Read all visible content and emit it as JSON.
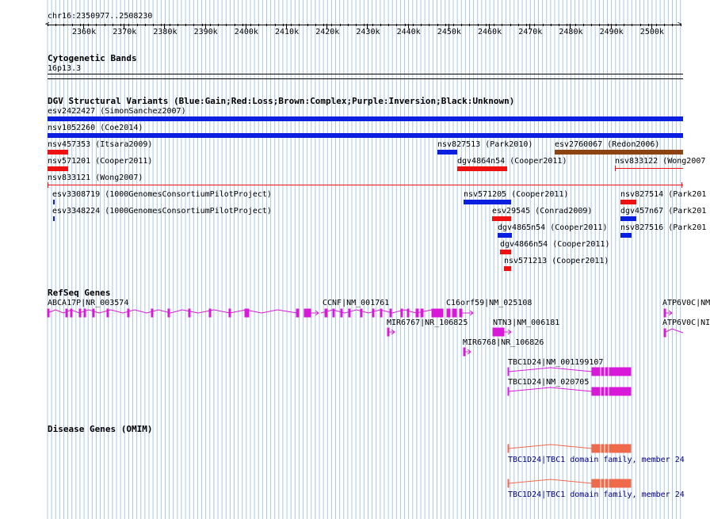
{
  "colors": {
    "gain": "#0a1fe0",
    "loss": "#ee1111",
    "complex": "#8b4513",
    "gene": "#d81ad8",
    "omim": "#ee6a4a",
    "omim_text": "#000080",
    "grid": "#a8c8e8"
  },
  "ruler": {
    "location": "chr16:2350977..2508230",
    "ticks": [
      "2360k",
      "2370k",
      "2380k",
      "2390k",
      "2400k",
      "2410k",
      "2420k",
      "2430k",
      "2440k",
      "2450k",
      "2460k",
      "2470k",
      "2480k",
      "2490k",
      "2500k"
    ]
  },
  "cyto": {
    "title": "Cytogenetic Bands",
    "band": "16p13.3"
  },
  "dgv": {
    "title": "DGV Structural Variants (Blue:Gain;Red:Loss;Brown:Complex;Purple:Inversion;Black:Unknown)",
    "labels": [
      "esv2422427 (SimonSanchez2007)",
      "nsv1052260 (Coe2014)",
      "nsv457353 (Itsara2009)",
      "nsv827513 (Park2010)",
      "esv2760067 (Redon2006)",
      "nsv571201 (Cooper2011)",
      "dgv4864n54 (Cooper2011)",
      "nsv833122 (Wong2007",
      "nsv833121 (Wong2007)",
      "esv3308719 (1000GenomesConsortiumPilotProject)",
      "nsv571205 (Cooper2011)",
      "nsv827514 (Park201",
      "esv3348224 (1000GenomesConsortiumPilotProject)",
      "esv29545 (Conrad2009)",
      "dgv457n67 (Park201",
      "dgv4865n54 (Cooper2011)",
      "nsv827516 (Park201",
      "dgv4866n54 (Cooper2011)",
      "nsv571213 (Cooper2011)"
    ]
  },
  "refseq": {
    "title": "RefSeq Genes",
    "labels": [
      "ABCA17P|NR_003574",
      "CCNF|NM_001761",
      "C16orf59|NM_025108",
      "ATP6V0C|NM",
      "MIR6767|NR_106825",
      "NTN3|NM_006181",
      "ATP6V0C|NI",
      "MIR6768|NR_106826",
      "TBC1D24|NM_001199107",
      "TBC1D24|NM_020705"
    ]
  },
  "omim": {
    "title": "Disease Genes (OMIM)",
    "labels": [
      "TBC1D24|TBC1 domain family, member 24",
      "TBC1D24|TBC1 domain family, member 24"
    ]
  }
}
